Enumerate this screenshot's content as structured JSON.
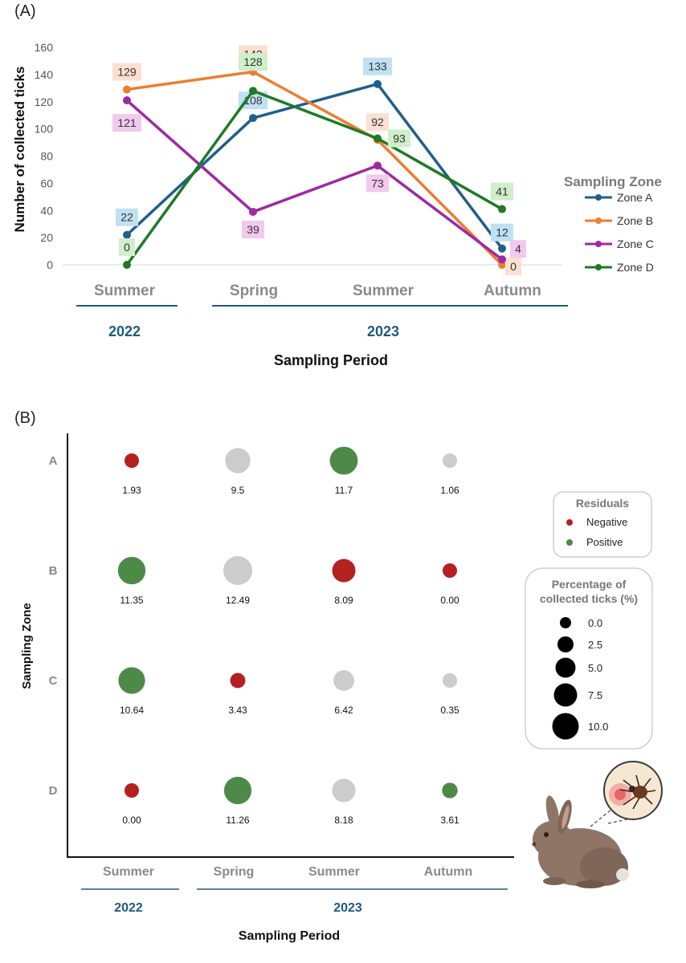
{
  "colors": {
    "zone_a": "#1f5f8b",
    "zone_b": "#ed7d31",
    "zone_c": "#9c2aa3",
    "zone_d": "#1e7a25",
    "label_bg_a": "#bfe1f3",
    "label_bg_b": "#fbe0d2",
    "label_bg_c": "#f1c9ee",
    "label_bg_d": "#cfeec9",
    "negative": "#b52020",
    "positive": "#4d8a48",
    "neutral": "#cccccc",
    "year_line": "#1e5a80"
  },
  "panel_a": {
    "label": "(A)",
    "legend_title": "Sampling Zone"
  },
  "panel_b": {
    "label": "(B)",
    "residuals_legend": {
      "title": "Residuals",
      "items": [
        "Negative",
        "Positive"
      ]
    },
    "size_legend": {
      "title_line1": "Percentage of",
      "title_line2": "collected ticks (%)",
      "values": [
        "0.0",
        "2.5",
        "5.0",
        "7.5",
        "10.0"
      ]
    }
  },
  "chart_data": [
    {
      "type": "line",
      "title": "",
      "xlabel": "Sampling Period",
      "ylabel": "Number of collected ticks",
      "categories": [
        "Summer",
        "Spring",
        "Summer",
        "Autumn"
      ],
      "year_groups": [
        {
          "label": "2022",
          "from": 0,
          "to": 0
        },
        {
          "label": "2023",
          "from": 1,
          "to": 3
        }
      ],
      "ylim": [
        0,
        160
      ],
      "yticks": [
        0,
        20,
        40,
        60,
        80,
        100,
        120,
        140,
        160
      ],
      "legend_title": "Sampling Zone",
      "series": [
        {
          "name": "Zone A",
          "values": [
            22,
            108,
            133,
            12
          ]
        },
        {
          "name": "Zone B",
          "values": [
            129,
            142,
            92,
            0
          ]
        },
        {
          "name": "Zone C",
          "values": [
            121,
            39,
            73,
            4
          ]
        },
        {
          "name": "Zone D",
          "values": [
            0,
            128,
            93,
            41
          ]
        }
      ]
    },
    {
      "type": "scatter",
      "subtype": "bubble",
      "title": "",
      "xlabel": "Sampling Period",
      "ylabel": "Sampling Zone",
      "categories": [
        "Summer",
        "Spring",
        "Summer",
        "Autumn"
      ],
      "year_groups": [
        {
          "label": "2022",
          "from": 0,
          "to": 0
        },
        {
          "label": "2023",
          "from": 1,
          "to": 3
        }
      ],
      "zones": [
        "A",
        "B",
        "C",
        "D"
      ],
      "values": [
        [
          "1.93",
          "9.5",
          "11.7",
          "1.06"
        ],
        [
          "11.35",
          "12.49",
          "8.09",
          "0.00"
        ],
        [
          "10.64",
          "3.43",
          "6.42",
          "0.35"
        ],
        [
          "0.00",
          "11.26",
          "8.18",
          "3.61"
        ]
      ],
      "residuals": [
        [
          "negative",
          "neutral",
          "positive",
          "neutral"
        ],
        [
          "positive",
          "neutral",
          "negative",
          "negative"
        ],
        [
          "positive",
          "negative",
          "neutral",
          "neutral"
        ],
        [
          "negative",
          "positive",
          "neutral",
          "positive"
        ]
      ],
      "size_legend_values": [
        0,
        2.5,
        5,
        7.5,
        10
      ]
    }
  ]
}
